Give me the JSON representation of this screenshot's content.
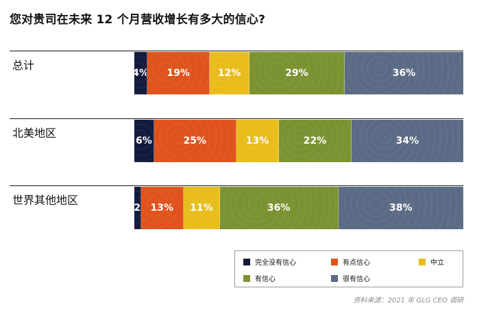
{
  "title": "您对贵司在未来 12 个月营收增长有多大的信心?",
  "source": "资料来源：2021 年 GLG CEO 调研",
  "legend": [
    {
      "label": "完全没有信心",
      "color": "#141a3c"
    },
    {
      "label": "有点信心",
      "color": "#e0531d"
    },
    {
      "label": "中立",
      "color": "#e8bd1b"
    },
    {
      "label": "有信心",
      "color": "#7b9232"
    },
    {
      "label": "很有信心",
      "color": "#5b6b85"
    }
  ],
  "chart_data": {
    "type": "bar",
    "orientation": "horizontal",
    "stacked": true,
    "title": "您对贵司在未来 12 个月营收增长有多大的信心?",
    "categories": [
      "总计",
      "北美地区",
      "世界其他地区"
    ],
    "series": [
      {
        "name": "完全没有信心",
        "values": [
          4,
          6,
          2
        ],
        "labels": [
          "4%",
          "6%",
          "2"
        ]
      },
      {
        "name": "有点信心",
        "values": [
          19,
          25,
          13
        ],
        "labels": [
          "19%",
          "25%",
          "13%"
        ]
      },
      {
        "name": "中立",
        "values": [
          12,
          13,
          11
        ],
        "labels": [
          "12%",
          "13%",
          "11%"
        ]
      },
      {
        "name": "有信心",
        "values": [
          29,
          22,
          36
        ],
        "labels": [
          "29%",
          "22%",
          "36%"
        ]
      },
      {
        "name": "很有信心",
        "values": [
          36,
          34,
          38
        ],
        "labels": [
          "36%",
          "34%",
          "38%"
        ]
      }
    ],
    "colors": [
      "#141a3c",
      "#e0531d",
      "#e8bd1b",
      "#7b9232",
      "#5b6b85"
    ],
    "legend_position": "bottom-right"
  }
}
